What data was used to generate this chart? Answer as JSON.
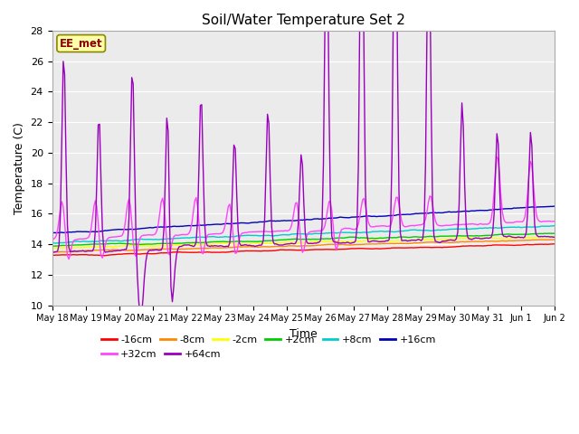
{
  "title": "Soil/Water Temperature Set 2",
  "xlabel": "Time",
  "ylabel": "Temperature (C)",
  "ylim": [
    10,
    28
  ],
  "annotation": "EE_met",
  "series_colors": {
    "-16cm": "#ff0000",
    "-8cm": "#ff8800",
    "-2cm": "#ffff00",
    "+2cm": "#00cc00",
    "+8cm": "#00cccc",
    "+16cm": "#0000bb",
    "+32cm": "#ff44ff",
    "+64cm": "#9900bb"
  },
  "bg_color": "#ffffff",
  "plot_bg": "#ebebeb",
  "x_tick_labels": [
    "May 18",
    "May 19",
    "May 20",
    "May 21",
    "May 22",
    "May 23",
    "May 24",
    "May 25",
    "May 26",
    "May 27",
    "May 28",
    "May 29",
    "May 30",
    "May 31",
    "Jun 1",
    "Jun 2"
  ],
  "yticks": [
    10,
    12,
    14,
    16,
    18,
    20,
    22,
    24,
    26,
    28
  ],
  "n_days": 15,
  "n_points": 360,
  "p64_spike_days": [
    0.35,
    1.4,
    2.4,
    3.45,
    4.45,
    5.45,
    6.45,
    7.45,
    8.2,
    9.25,
    10.25,
    11.25,
    12.25,
    13.3,
    14.3
  ],
  "p64_spike_heights": [
    13,
    9,
    12,
    11,
    10,
    7,
    9,
    6,
    22,
    26,
    26,
    22,
    9,
    7,
    7
  ],
  "p64_dip_days": [
    2.65,
    3.55
  ],
  "p64_dip_depths": [
    4.5,
    4.5
  ],
  "p32_spike_days": [
    0.3,
    1.3,
    2.3,
    3.3,
    4.3,
    5.3,
    7.3,
    8.3,
    9.3,
    10.3,
    11.3,
    13.3,
    14.3
  ],
  "p32_spike_heights": [
    2.5,
    2.5,
    2.5,
    2.5,
    2.5,
    2.0,
    2.0,
    2.0,
    2.0,
    2.0,
    2.0,
    4.5,
    4.0
  ],
  "legend_order": [
    "-16cm",
    "-8cm",
    "-2cm",
    "+2cm",
    "+8cm",
    "+16cm",
    "+32cm",
    "+64cm"
  ]
}
